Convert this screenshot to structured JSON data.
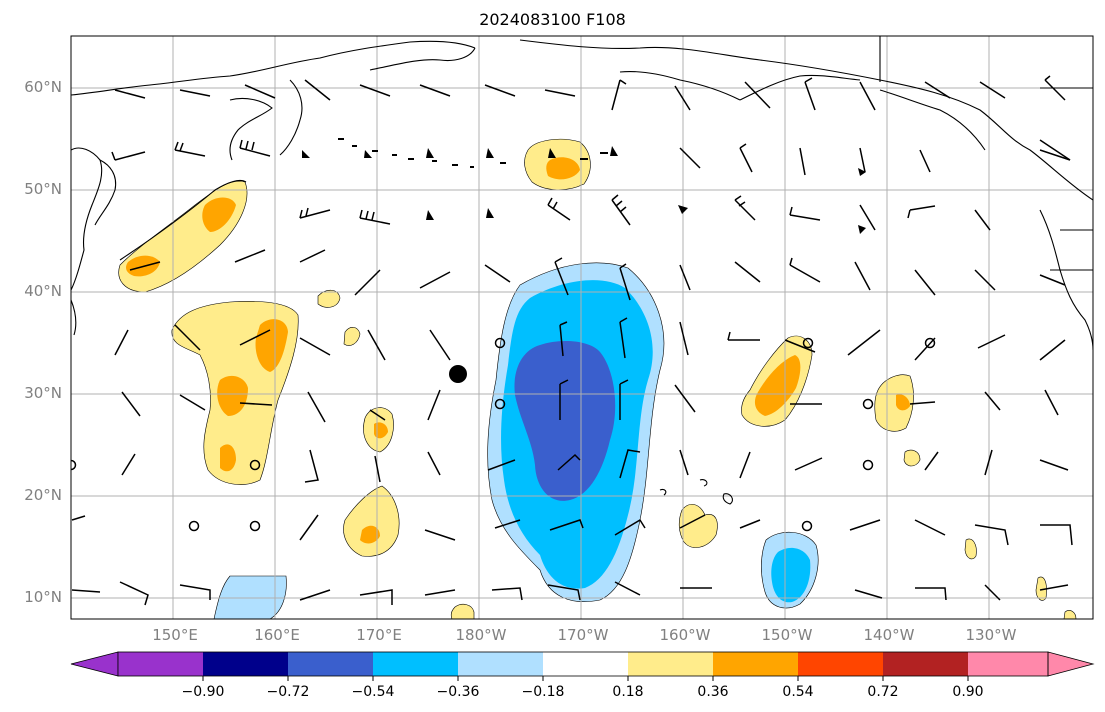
{
  "title": "2024083100 F108",
  "lat_labels": [
    "60°N",
    "50°N",
    "40°N",
    "30°N",
    "20°N",
    "10°N"
  ],
  "lon_labels": [
    "150°E",
    "160°E",
    "170°E",
    "180°W",
    "170°W",
    "160°W",
    "150°W",
    "140°W",
    "130°W"
  ],
  "colorbar": {
    "labels": [
      "−0.90",
      "−0.72",
      "−0.54",
      "−0.36",
      "−0.18",
      "0.18",
      "0.36",
      "0.54",
      "0.72",
      "0.90"
    ],
    "under_color": "#9932cc",
    "over_color": "#ff88aa",
    "colors": [
      "#00008b",
      "#3a5fcd",
      "#00bfff",
      "#b0e0ff",
      "#ffffff",
      "#ffec8b",
      "#ffa500",
      "#ff4500",
      "#b22222"
    ]
  },
  "colors": {
    "neg_strong": "#3a5fcd",
    "neg_mid": "#00bfff",
    "neg_weak": "#b0e0ff",
    "pos_weak": "#ffec8b",
    "pos_mid": "#ffa500",
    "pos_strong": "#ff4500",
    "gridline": "#b0b0b0",
    "coast": "#000000"
  },
  "marker": "storm-center-dot"
}
